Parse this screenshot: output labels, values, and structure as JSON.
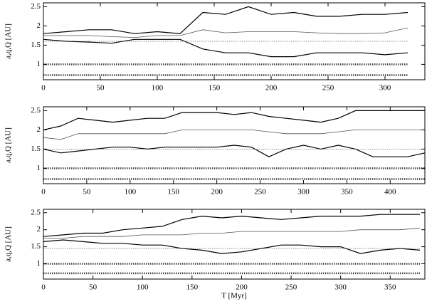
{
  "chart_data": [
    {
      "type": "line",
      "ylabel": "a,q,Q [AU]",
      "x": [
        0,
        20,
        40,
        60,
        80,
        100,
        120,
        140,
        160,
        180,
        200,
        220,
        240,
        260,
        280,
        300,
        320
      ],
      "xlim": [
        0,
        335
      ],
      "xticks": [
        0,
        50,
        100,
        150,
        200,
        250,
        300
      ],
      "ylim": [
        0.6,
        2.6
      ],
      "yticks": [
        1,
        1.5,
        2,
        2.5
      ],
      "series": [
        {
          "color": "#000000",
          "width": 1.2,
          "values": [
            1.8,
            1.85,
            1.9,
            1.9,
            1.8,
            1.85,
            1.8,
            2.35,
            2.3,
            2.5,
            2.3,
            2.35,
            2.25,
            2.25,
            2.3,
            2.3,
            2.35
          ]
        },
        {
          "color": "#555555",
          "width": 0.8,
          "values": [
            1.75,
            1.75,
            1.75,
            1.72,
            1.7,
            1.75,
            1.75,
            1.9,
            1.82,
            1.85,
            1.85,
            1.85,
            1.82,
            1.8,
            1.8,
            1.82,
            1.95
          ]
        },
        {
          "color": "#000000",
          "width": 1.2,
          "values": [
            1.65,
            1.6,
            1.58,
            1.55,
            1.65,
            1.65,
            1.65,
            1.4,
            1.3,
            1.3,
            1.2,
            1.2,
            1.3,
            1.3,
            1.3,
            1.25,
            1.3
          ]
        },
        {
          "color": "#666666",
          "width": 0.8,
          "dashed": true,
          "values": [
            1.6,
            1.6,
            1.6,
            1.6,
            1.6,
            1.6,
            1.6,
            1.6,
            1.6,
            1.6,
            1.6,
            1.6,
            1.6,
            1.6,
            1.6,
            1.6,
            1.6
          ]
        },
        {
          "color": "#444444",
          "width": 2.5,
          "dashed": true,
          "values": [
            1.0,
            1.0,
            1.0,
            1.0,
            1.0,
            1.0,
            1.0,
            1.0,
            1.0,
            1.0,
            1.0,
            1.0,
            1.0,
            1.0,
            1.0,
            1.0,
            1.0
          ]
        },
        {
          "color": "#444444",
          "width": 2.5,
          "dashed": true,
          "values": [
            0.72,
            0.72,
            0.72,
            0.72,
            0.72,
            0.72,
            0.72,
            0.72,
            0.72,
            0.72,
            0.72,
            0.72,
            0.72,
            0.72,
            0.72,
            0.72,
            0.72
          ]
        }
      ]
    },
    {
      "type": "line",
      "ylabel": "a,q,Q [AU]",
      "x": [
        0,
        20,
        40,
        60,
        80,
        100,
        120,
        140,
        160,
        180,
        200,
        220,
        240,
        260,
        280,
        300,
        320,
        340,
        360,
        380,
        400,
        420,
        440
      ],
      "xlim": [
        0,
        440
      ],
      "xticks": [
        0,
        50,
        100,
        150,
        200,
        250,
        300,
        350,
        400
      ],
      "ylim": [
        0.6,
        2.6
      ],
      "yticks": [
        1,
        1.5,
        2,
        2.5
      ],
      "series": [
        {
          "color": "#000000",
          "width": 1.2,
          "values": [
            2.0,
            2.1,
            2.3,
            2.25,
            2.2,
            2.25,
            2.3,
            2.3,
            2.45,
            2.45,
            2.45,
            2.4,
            2.45,
            2.35,
            2.3,
            2.25,
            2.2,
            2.3,
            2.5,
            2.5,
            2.5,
            2.5,
            2.5
          ]
        },
        {
          "color": "#555555",
          "width": 0.8,
          "values": [
            1.8,
            1.75,
            1.9,
            1.9,
            1.9,
            1.9,
            1.9,
            1.9,
            2.0,
            2.0,
            2.0,
            2.0,
            2.0,
            1.95,
            1.9,
            1.9,
            1.9,
            1.95,
            2.0,
            2.0,
            2.0,
            2.0,
            2.0
          ]
        },
        {
          "color": "#000000",
          "width": 1.2,
          "values": [
            1.5,
            1.4,
            1.45,
            1.5,
            1.55,
            1.55,
            1.5,
            1.55,
            1.55,
            1.55,
            1.55,
            1.6,
            1.55,
            1.3,
            1.5,
            1.6,
            1.5,
            1.6,
            1.5,
            1.3,
            1.3,
            1.3,
            1.4
          ]
        },
        {
          "color": "#666666",
          "width": 0.8,
          "dashed": true,
          "values": [
            1.5,
            1.5,
            1.5,
            1.5,
            1.5,
            1.5,
            1.5,
            1.5,
            1.5,
            1.5,
            1.5,
            1.5,
            1.5,
            1.5,
            1.5,
            1.5,
            1.5,
            1.5,
            1.5,
            1.5,
            1.5,
            1.5,
            1.5
          ]
        },
        {
          "color": "#444444",
          "width": 2.5,
          "dashed": true,
          "values": [
            1.0,
            1.0,
            1.0,
            1.0,
            1.0,
            1.0,
            1.0,
            1.0,
            1.0,
            1.0,
            1.0,
            1.0,
            1.0,
            1.0,
            1.0,
            1.0,
            1.0,
            1.0,
            1.0,
            1.0,
            1.0,
            1.0,
            1.0
          ]
        },
        {
          "color": "#444444",
          "width": 2.5,
          "dashed": true,
          "values": [
            0.72,
            0.72,
            0.72,
            0.72,
            0.72,
            0.72,
            0.72,
            0.72,
            0.72,
            0.72,
            0.72,
            0.72,
            0.72,
            0.72,
            0.72,
            0.72,
            0.72,
            0.72,
            0.72,
            0.72,
            0.72,
            0.72,
            0.72
          ]
        }
      ]
    },
    {
      "type": "line",
      "ylabel": "a,q,Q [AU]",
      "xlabel": "T [Myr]",
      "x": [
        0,
        20,
        40,
        60,
        80,
        100,
        120,
        140,
        160,
        180,
        200,
        220,
        240,
        260,
        280,
        300,
        320,
        340,
        360,
        380
      ],
      "xlim": [
        0,
        385
      ],
      "xticks": [
        0,
        50,
        100,
        150,
        200,
        250,
        300,
        350
      ],
      "ylim": [
        0.55,
        2.6
      ],
      "yticks": [
        1,
        1.5,
        2,
        2.5
      ],
      "series": [
        {
          "color": "#000000",
          "width": 1.2,
          "values": [
            1.8,
            1.85,
            1.9,
            1.9,
            2.0,
            2.05,
            2.1,
            2.3,
            2.4,
            2.35,
            2.4,
            2.35,
            2.3,
            2.35,
            2.4,
            2.4,
            2.4,
            2.45,
            2.45,
            2.45
          ]
        },
        {
          "color": "#555555",
          "width": 0.8,
          "values": [
            1.75,
            1.75,
            1.8,
            1.8,
            1.8,
            1.85,
            1.85,
            1.85,
            1.9,
            1.9,
            1.95,
            1.95,
            1.95,
            1.95,
            1.95,
            1.95,
            2.0,
            2.0,
            2.0,
            2.05
          ]
        },
        {
          "color": "#000000",
          "width": 1.2,
          "values": [
            1.65,
            1.7,
            1.65,
            1.6,
            1.6,
            1.55,
            1.55,
            1.45,
            1.4,
            1.3,
            1.35,
            1.45,
            1.55,
            1.55,
            1.5,
            1.5,
            1.3,
            1.4,
            1.45,
            1.4
          ]
        },
        {
          "color": "#666666",
          "width": 0.8,
          "dashed": true,
          "values": [
            1.45,
            1.45,
            1.45,
            1.45,
            1.45,
            1.45,
            1.45,
            1.45,
            1.45,
            1.45,
            1.45,
            1.45,
            1.45,
            1.45,
            1.45,
            1.45,
            1.45,
            1.45,
            1.45,
            1.45
          ]
        },
        {
          "color": "#444444",
          "width": 2.5,
          "dashed": true,
          "values": [
            1.0,
            1.0,
            1.0,
            1.0,
            1.0,
            1.0,
            1.0,
            1.0,
            1.0,
            1.0,
            1.0,
            1.0,
            1.0,
            1.0,
            1.0,
            1.0,
            1.0,
            1.0,
            1.0,
            1.0
          ]
        },
        {
          "color": "#444444",
          "width": 2.5,
          "dashed": true,
          "values": [
            0.72,
            0.72,
            0.72,
            0.72,
            0.72,
            0.72,
            0.72,
            0.72,
            0.72,
            0.72,
            0.72,
            0.72,
            0.72,
            0.72,
            0.72,
            0.72,
            0.72,
            0.72,
            0.72,
            0.72
          ]
        }
      ]
    }
  ]
}
